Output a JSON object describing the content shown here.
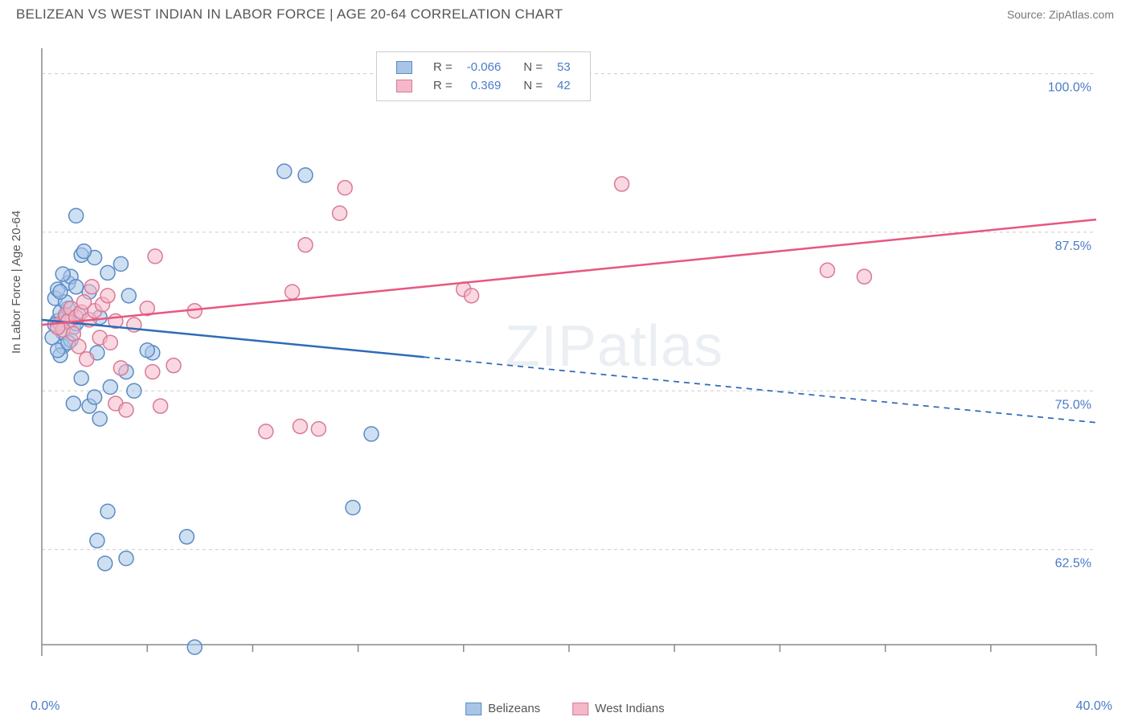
{
  "title": "BELIZEAN VS WEST INDIAN IN LABOR FORCE | AGE 20-64 CORRELATION CHART",
  "source": "Source: ZipAtlas.com",
  "watermark": "ZIPatlas",
  "y_axis_label": "In Labor Force | Age 20-64",
  "chart": {
    "type": "scatter",
    "background_color": "#ffffff",
    "grid_color": "#cccccc",
    "axis_color": "#888888",
    "xlim": [
      0,
      40
    ],
    "ylim": [
      55,
      102
    ],
    "x_ticks_minor": [
      4,
      8,
      12,
      16,
      20,
      24,
      28,
      32,
      36
    ],
    "x_axis_labels": [
      {
        "value": 0,
        "text": "0.0%"
      },
      {
        "value": 40,
        "text": "40.0%"
      }
    ],
    "y_gridlines": [
      {
        "value": 62.5,
        "text": "62.5%"
      },
      {
        "value": 75.0,
        "text": "75.0%"
      },
      {
        "value": 87.5,
        "text": "87.5%"
      },
      {
        "value": 100.0,
        "text": "100.0%"
      }
    ],
    "tick_label_color": "#4a7bc8",
    "tick_label_fontsize": 16,
    "marker_radius": 9,
    "marker_stroke_width": 1.5,
    "series": [
      {
        "name": "Belizeans",
        "fill": "#a8c5e8",
        "fill_opacity": 0.55,
        "stroke": "#5a8bc4",
        "points": [
          [
            0.6,
            80.5
          ],
          [
            0.7,
            81.2
          ],
          [
            0.8,
            79.6
          ],
          [
            0.9,
            80.8
          ],
          [
            0.5,
            82.3
          ],
          [
            1.0,
            81.5
          ],
          [
            1.2,
            80.0
          ],
          [
            0.4,
            79.2
          ],
          [
            0.8,
            78.5
          ],
          [
            1.1,
            79.0
          ],
          [
            0.7,
            77.8
          ],
          [
            1.3,
            80.3
          ],
          [
            0.6,
            78.2
          ],
          [
            0.9,
            82.0
          ],
          [
            1.0,
            78.8
          ],
          [
            0.5,
            80.2
          ],
          [
            1.4,
            81.0
          ],
          [
            2.1,
            78.0
          ],
          [
            2.2,
            80.8
          ],
          [
            2.0,
            85.5
          ],
          [
            1.5,
            85.7
          ],
          [
            3.0,
            85.0
          ],
          [
            1.6,
            86.0
          ],
          [
            2.5,
            84.3
          ],
          [
            1.3,
            88.8
          ],
          [
            4.2,
            78.0
          ],
          [
            4.0,
            78.2
          ],
          [
            3.2,
            76.5
          ],
          [
            3.5,
            75.0
          ],
          [
            2.6,
            75.3
          ],
          [
            1.8,
            73.8
          ],
          [
            2.0,
            74.5
          ],
          [
            1.2,
            74.0
          ],
          [
            1.5,
            76.0
          ],
          [
            2.2,
            72.8
          ],
          [
            9.2,
            92.3
          ],
          [
            10.0,
            92.0
          ],
          [
            12.5,
            71.6
          ],
          [
            11.8,
            65.8
          ],
          [
            2.5,
            65.5
          ],
          [
            2.1,
            63.2
          ],
          [
            5.5,
            63.5
          ],
          [
            3.2,
            61.8
          ],
          [
            2.4,
            61.4
          ],
          [
            5.8,
            54.8
          ],
          [
            3.3,
            82.5
          ],
          [
            1.8,
            82.8
          ],
          [
            1.0,
            83.5
          ],
          [
            0.6,
            83.0
          ],
          [
            1.1,
            84.0
          ],
          [
            0.8,
            84.2
          ],
          [
            1.3,
            83.2
          ],
          [
            0.7,
            82.8
          ]
        ],
        "trend": {
          "x1": 0,
          "y1": 80.6,
          "x2": 40,
          "y2": 72.5,
          "color": "#2e6bb8",
          "width": 2.5,
          "solid_to_x": 14.5
        }
      },
      {
        "name": "West Indians",
        "fill": "#f5b8c8",
        "fill_opacity": 0.55,
        "stroke": "#d87a96",
        "points": [
          [
            0.7,
            80.3
          ],
          [
            0.9,
            81.0
          ],
          [
            1.0,
            80.5
          ],
          [
            0.8,
            79.8
          ],
          [
            1.1,
            81.5
          ],
          [
            1.3,
            80.8
          ],
          [
            0.6,
            80.0
          ],
          [
            1.2,
            79.5
          ],
          [
            1.5,
            81.2
          ],
          [
            1.8,
            80.6
          ],
          [
            2.0,
            81.3
          ],
          [
            1.6,
            82.0
          ],
          [
            2.3,
            81.8
          ],
          [
            2.8,
            80.5
          ],
          [
            3.5,
            80.2
          ],
          [
            4.0,
            81.5
          ],
          [
            5.8,
            81.3
          ],
          [
            4.3,
            85.6
          ],
          [
            10.0,
            86.5
          ],
          [
            9.5,
            82.8
          ],
          [
            11.3,
            89.0
          ],
          [
            16.0,
            83.0
          ],
          [
            16.3,
            82.5
          ],
          [
            11.5,
            91.0
          ],
          [
            2.8,
            74.0
          ],
          [
            3.2,
            73.5
          ],
          [
            4.5,
            73.8
          ],
          [
            3.0,
            76.8
          ],
          [
            4.2,
            76.5
          ],
          [
            5.0,
            77.0
          ],
          [
            8.5,
            71.8
          ],
          [
            9.8,
            72.2
          ],
          [
            10.5,
            72.0
          ],
          [
            22.0,
            91.3
          ],
          [
            29.8,
            84.5
          ],
          [
            31.2,
            84.0
          ],
          [
            2.5,
            82.5
          ],
          [
            1.9,
            83.2
          ],
          [
            2.2,
            79.2
          ],
          [
            1.4,
            78.5
          ],
          [
            1.7,
            77.5
          ],
          [
            2.6,
            78.8
          ]
        ],
        "trend": {
          "x1": 0,
          "y1": 80.2,
          "x2": 40,
          "y2": 88.5,
          "color": "#e8567f",
          "width": 2.5,
          "solid_to_x": 40
        }
      }
    ]
  },
  "top_legend": {
    "rows": [
      {
        "swatch_fill": "#a8c5e8",
        "swatch_stroke": "#5a8bc4",
        "r_label": "R =",
        "r_value": "-0.066",
        "n_label": "N =",
        "n_value": "53"
      },
      {
        "swatch_fill": "#f5b8c8",
        "swatch_stroke": "#d87a96",
        "r_label": "R =",
        "r_value": "0.369",
        "n_label": "N =",
        "n_value": "42"
      }
    ],
    "label_color": "#555555",
    "value_color": "#4a7bc8"
  },
  "bottom_legend": {
    "items": [
      {
        "swatch_fill": "#a8c5e8",
        "swatch_stroke": "#5a8bc4",
        "label": "Belizeans"
      },
      {
        "swatch_fill": "#f5b8c8",
        "swatch_stroke": "#d87a96",
        "label": "West Indians"
      }
    ]
  }
}
